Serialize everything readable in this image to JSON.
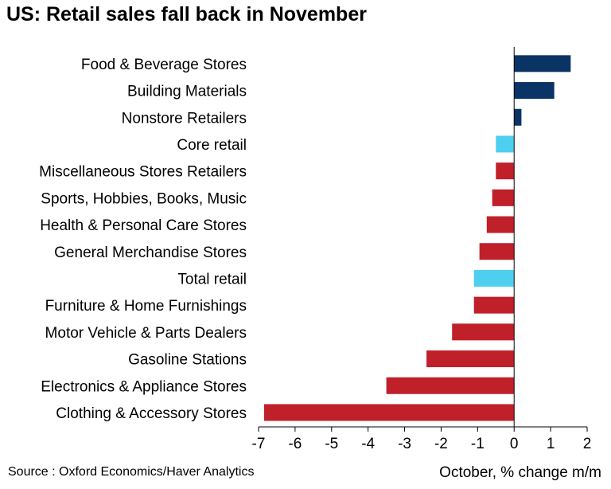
{
  "chart_data": {
    "type": "bar",
    "orientation": "horizontal",
    "title": "US: Retail sales fall back in November",
    "xlabel": "October, % change m/m",
    "source": "Source : Oxford Economics/Haver Analytics",
    "categories": [
      "Food & Beverage Stores",
      "Building Materials",
      "Nonstore Retailers",
      "Core retail",
      "Miscellaneous Stores Retailers",
      "Sports, Hobbies, Books, Music",
      "Health & Personal Care Stores",
      "General Merchandise Stores",
      "Total retail",
      "Furniture & Home Furnishings",
      "Motor Vehicle & Parts Dealers",
      "Gasoline Stations",
      "Electronics & Appliance Stores",
      "Clothing & Accessory Stores"
    ],
    "values": [
      1.55,
      1.1,
      0.2,
      -0.5,
      -0.5,
      -0.6,
      -0.75,
      -0.95,
      -1.1,
      -1.1,
      -1.7,
      -2.4,
      -3.5,
      -6.85
    ],
    "colors": [
      "#0b3466",
      "#0b3466",
      "#0b3466",
      "#4fcfef",
      "#c0202a",
      "#c0202a",
      "#c0202a",
      "#c0202a",
      "#4fcfef",
      "#c0202a",
      "#c0202a",
      "#c0202a",
      "#c0202a",
      "#c0202a"
    ],
    "xlim": [
      -7,
      2
    ],
    "xticks": [
      -7,
      -6,
      -5,
      -4,
      -3,
      -2,
      -1,
      0,
      1,
      2
    ],
    "grid": false
  }
}
